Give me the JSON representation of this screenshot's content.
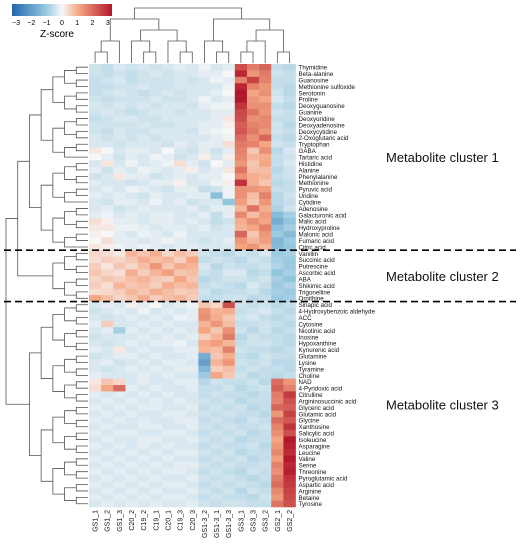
{
  "chart_data": {
    "type": "heatmap",
    "columns": [
      "GS1_1",
      "GS1_2",
      "GS1_3",
      "C20_2",
      "C19_2",
      "C19_1",
      "C20_1",
      "C19_3",
      "C20_3",
      "GS1-3_2",
      "GS1-3_1",
      "GS1-3_3",
      "GS3_1",
      "GS3_3",
      "GS3_2",
      "GS2_1",
      "GS2_2"
    ],
    "rows": [
      "Thymidine",
      "Beta-alanine",
      "Guanosine",
      "Methionine sulfoxide",
      "Serotonin",
      "Proline",
      "Deoxyguanosine",
      "Guanine",
      "Deoxyuridine",
      "Deoxyadenosine",
      "Deoxycytidine",
      "2-Oxoglutaric acid",
      "Tryptophan",
      "GABA",
      "Tartaric acid",
      "Histidine",
      "Alanine",
      "Phenylalanine",
      "Methionine",
      "Pyruvic acid",
      "Uridine",
      "Cytidine",
      "Adenosine",
      "Galacturonic acid",
      "Malic acid",
      "Hydroxyproline",
      "Malonic acid",
      "Fumaric acid",
      "Citric acid",
      "Vanillin",
      "Succinic acid",
      "Putrescine",
      "Ascorbic acid",
      "ABA",
      "Shikimic acid",
      "Trigonelline",
      "Ornithine",
      "Sinapic acid",
      "4-Hydroxybenzoic aldehyde",
      "ACC",
      "Cytosine",
      "Nicotinic acid",
      "Inosine",
      "Hypoxanthine",
      "Kynurenic acid",
      "Glutamine",
      "Lysine",
      "Tyramine",
      "Choline",
      "NAD",
      "4-Pyridoxic acid",
      "Citrulline",
      "Argininosuccinic acid",
      "Glyceric acid",
      "Glutamic acid",
      "Glycine",
      "Xanthosine",
      "Salicylic acid",
      "Isoleucine",
      "Asparagine",
      "Leucine",
      "Valine",
      "Serine",
      "Threonine",
      "Pyroglutamic acid",
      "Aspartic acid",
      "Arginine",
      "Betaine",
      "Tyrosine"
    ],
    "values": [
      [
        -0.4,
        -0.5,
        -0.3,
        -0.4,
        -0.3,
        -0.4,
        -0.3,
        -0.2,
        -0.3,
        -0.1,
        -0.3,
        -0.2,
        2.2,
        1.6,
        1.9,
        -0.5,
        -0.6
      ],
      [
        -0.4,
        -0.5,
        -0.4,
        -0.5,
        -0.4,
        -0.3,
        -0.4,
        -0.3,
        -0.3,
        -0.2,
        -0.2,
        0.0,
        2.8,
        1.2,
        1.6,
        -0.4,
        -0.5
      ],
      [
        -0.5,
        -0.4,
        -0.3,
        -0.5,
        -0.4,
        -0.4,
        -0.4,
        -0.3,
        -0.4,
        -0.3,
        -0.1,
        -0.2,
        1.5,
        2.4,
        1.5,
        -0.5,
        -0.5
      ],
      [
        -0.5,
        -0.5,
        -0.4,
        -0.4,
        -0.3,
        -0.4,
        -0.4,
        -0.3,
        -0.3,
        -0.3,
        -0.3,
        -0.1,
        2.8,
        1.5,
        1.2,
        -0.5,
        -0.6
      ],
      [
        -0.5,
        -0.4,
        -0.3,
        -0.4,
        -0.5,
        -0.4,
        -0.3,
        -0.4,
        -0.3,
        -0.3,
        -0.2,
        0.0,
        3.0,
        1.0,
        1.3,
        -0.4,
        -0.6
      ],
      [
        -0.4,
        -0.5,
        -0.4,
        -0.4,
        -0.4,
        -0.3,
        -0.4,
        -0.4,
        -0.3,
        -0.1,
        -0.3,
        -0.2,
        3.0,
        1.2,
        1.0,
        -0.3,
        -0.5
      ],
      [
        -0.3,
        -0.4,
        -0.3,
        -0.4,
        -0.3,
        -0.4,
        -0.3,
        -0.3,
        -0.4,
        -0.2,
        -0.1,
        -0.1,
        2.6,
        1.3,
        1.3,
        -0.5,
        -0.6
      ],
      [
        -0.4,
        -0.3,
        -0.4,
        -0.5,
        -0.4,
        -0.3,
        -0.3,
        -0.4,
        -0.3,
        -0.3,
        -0.2,
        -0.2,
        2.3,
        1.7,
        1.2,
        -0.4,
        -0.5
      ],
      [
        -0.5,
        -0.4,
        -0.3,
        -0.3,
        -0.4,
        -0.4,
        -0.3,
        -0.3,
        -0.3,
        -0.3,
        -0.2,
        0.2,
        2.2,
        1.3,
        1.4,
        -0.5,
        -0.5
      ],
      [
        -0.4,
        -0.4,
        -0.4,
        -0.4,
        -0.3,
        -0.4,
        -0.4,
        -0.3,
        -0.3,
        -0.2,
        -0.2,
        0.1,
        2.0,
        1.5,
        1.4,
        -0.4,
        -0.6
      ],
      [
        -0.4,
        -0.5,
        -0.3,
        -0.4,
        -0.4,
        -0.3,
        -0.3,
        -0.3,
        -0.4,
        -0.2,
        -0.1,
        0.0,
        2.1,
        1.6,
        1.2,
        -0.4,
        -0.5
      ],
      [
        -0.3,
        -0.4,
        -0.3,
        -0.4,
        -0.3,
        -0.4,
        -0.3,
        -0.3,
        -0.3,
        -0.3,
        -0.2,
        -0.1,
        1.8,
        1.3,
        1.9,
        -0.5,
        -0.6
      ],
      [
        -0.3,
        -0.3,
        -0.4,
        -0.3,
        -0.3,
        -0.3,
        -0.4,
        -0.2,
        -0.3,
        -0.2,
        -0.2,
        0.3,
        1.6,
        1.5,
        1.0,
        -0.4,
        -0.5
      ],
      [
        0.2,
        0.0,
        -0.3,
        -0.2,
        -0.2,
        -0.3,
        0.0,
        -0.3,
        -0.4,
        -0.2,
        -0.4,
        -0.2,
        1.5,
        0.6,
        1.3,
        -0.6,
        -0.3
      ],
      [
        0.0,
        -0.2,
        -0.4,
        -0.2,
        -0.3,
        -0.1,
        -0.2,
        -0.4,
        -0.3,
        0.1,
        -0.3,
        0.1,
        1.4,
        0.8,
        0.9,
        -0.5,
        -0.4
      ],
      [
        -0.3,
        0.2,
        -0.3,
        -0.1,
        -0.3,
        -0.2,
        -0.1,
        0.3,
        -0.2,
        -0.4,
        0.0,
        -0.2,
        1.2,
        0.6,
        1.0,
        -0.5,
        -0.3
      ],
      [
        -0.2,
        -0.4,
        -0.2,
        -0.3,
        -0.1,
        -0.2,
        -0.3,
        -0.2,
        0.1,
        -0.3,
        -0.2,
        0.2,
        1.7,
        0.7,
        0.7,
        -0.6,
        -0.4
      ],
      [
        -0.4,
        -0.3,
        0.2,
        -0.2,
        -0.2,
        -0.4,
        -0.3,
        -0.2,
        -0.3,
        -0.2,
        -0.2,
        0.0,
        1.3,
        0.9,
        0.8,
        -0.5,
        -0.4
      ],
      [
        -0.2,
        -0.3,
        -0.3,
        -0.4,
        -0.3,
        -0.2,
        -0.2,
        0.1,
        -0.3,
        -0.3,
        -0.1,
        0.1,
        2.6,
        0.9,
        0.6,
        -0.6,
        -0.5
      ],
      [
        -0.3,
        -0.2,
        -0.3,
        -0.1,
        -0.2,
        -0.3,
        -0.4,
        -0.2,
        -0.2,
        -0.5,
        -0.4,
        -0.1,
        1.3,
        1.2,
        1.1,
        -0.5,
        -0.5
      ],
      [
        -0.2,
        -0.3,
        -0.2,
        -0.3,
        -0.4,
        -0.2,
        -0.3,
        -0.3,
        -0.2,
        -0.2,
        -1.1,
        -0.1,
        1.3,
        0.7,
        1.5,
        -0.6,
        -0.4
      ],
      [
        -0.3,
        -0.4,
        -0.2,
        -0.2,
        -0.3,
        -0.1,
        -0.3,
        -0.2,
        -0.4,
        -0.3,
        -0.3,
        -1.0,
        1.1,
        0.6,
        1.2,
        -0.6,
        -0.5
      ],
      [
        -0.3,
        -0.2,
        -0.4,
        -0.3,
        -0.2,
        -0.3,
        -0.3,
        -0.3,
        -0.2,
        -0.4,
        -0.2,
        -0.2,
        0.8,
        1.7,
        0.9,
        -0.7,
        -0.4
      ],
      [
        -0.2,
        -0.1,
        -0.3,
        -0.2,
        -0.3,
        -0.2,
        -0.2,
        -0.3,
        -0.3,
        -0.2,
        -0.5,
        -0.2,
        1.4,
        0.7,
        1.1,
        -1.2,
        -0.8
      ],
      [
        0.3,
        0.1,
        -0.2,
        -0.2,
        -0.3,
        -0.2,
        -0.2,
        -0.3,
        -0.2,
        -0.3,
        -0.5,
        -0.4,
        0.9,
        1.3,
        1.0,
        -1.5,
        -1.0
      ],
      [
        0.2,
        0.2,
        -0.1,
        -0.1,
        -0.2,
        -0.3,
        -0.2,
        -0.2,
        -0.3,
        -0.2,
        -0.4,
        -0.3,
        0.8,
        1.0,
        1.5,
        -1.1,
        -0.8
      ],
      [
        0.1,
        0.0,
        -0.2,
        -0.3,
        -0.1,
        -0.2,
        -0.3,
        -0.1,
        -0.3,
        -0.3,
        -0.3,
        -0.3,
        1.9,
        0.6,
        1.2,
        -0.9,
        -1.2
      ],
      [
        0.0,
        0.3,
        -0.2,
        -0.2,
        -0.3,
        -0.2,
        -0.1,
        -0.2,
        -0.3,
        -0.4,
        -0.3,
        -0.2,
        1.2,
        0.8,
        1.1,
        -1.3,
        -0.9
      ],
      [
        0.2,
        0.1,
        -0.1,
        -0.2,
        -0.1,
        -0.2,
        -0.3,
        -0.2,
        -0.2,
        -0.3,
        -0.3,
        -0.3,
        1.0,
        1.2,
        0.8,
        -1.2,
        -1.0
      ],
      [
        0.4,
        0.3,
        0.2,
        0.8,
        0.6,
        0.9,
        0.4,
        0.7,
        0.5,
        -0.4,
        -0.5,
        -0.6,
        -0.4,
        -0.5,
        -0.3,
        -0.9,
        -0.8
      ],
      [
        0.3,
        0.5,
        0.4,
        0.6,
        0.9,
        0.7,
        0.8,
        0.5,
        1.0,
        -0.5,
        -0.4,
        -0.5,
        -0.6,
        -0.4,
        -0.5,
        -0.8,
        -0.9
      ],
      [
        0.5,
        0.2,
        0.6,
        0.4,
        0.7,
        1.2,
        0.6,
        0.9,
        0.8,
        -0.3,
        -0.6,
        -0.4,
        -0.5,
        -0.5,
        -0.4,
        -0.7,
        -0.9
      ],
      [
        0.6,
        0.4,
        0.3,
        0.9,
        0.5,
        0.8,
        1.1,
        0.6,
        0.7,
        -0.4,
        -0.5,
        -0.3,
        -0.3,
        -0.6,
        -0.5,
        -1.0,
        -0.8
      ],
      [
        0.4,
        0.6,
        0.5,
        0.7,
        0.8,
        0.6,
        0.5,
        1.0,
        0.6,
        -0.6,
        -0.5,
        -0.4,
        -0.4,
        -0.5,
        -0.4,
        -0.8,
        -1.0
      ],
      [
        0.5,
        0.3,
        0.8,
        0.6,
        0.7,
        0.5,
        0.9,
        0.7,
        0.8,
        -0.5,
        -0.4,
        -0.5,
        -0.6,
        -0.3,
        -0.5,
        -0.9,
        -0.7
      ],
      [
        0.3,
        0.4,
        0.5,
        0.8,
        0.6,
        0.9,
        0.7,
        0.5,
        0.6,
        -0.4,
        -0.6,
        -0.5,
        -0.5,
        -0.4,
        -0.6,
        -0.8,
        -0.9
      ],
      [
        1.0,
        0.7,
        0.4,
        0.6,
        0.9,
        0.5,
        0.7,
        0.8,
        0.5,
        -0.5,
        -0.5,
        -0.4,
        -0.4,
        -0.6,
        -0.5,
        -0.9,
        -0.8
      ],
      [
        -0.3,
        -0.2,
        -0.3,
        0.1,
        -0.2,
        0.0,
        -0.3,
        -0.2,
        -0.1,
        0.6,
        0.4,
        2.2,
        -0.4,
        -0.5,
        -0.4,
        -0.6,
        -0.5
      ],
      [
        -0.4,
        -0.3,
        -0.2,
        -0.3,
        -0.1,
        -0.3,
        -0.2,
        -0.3,
        -0.2,
        1.2,
        0.8,
        0.9,
        -0.5,
        -0.4,
        -0.3,
        -0.5,
        -0.6
      ],
      [
        -0.3,
        -0.4,
        -0.3,
        -0.2,
        -0.3,
        -0.2,
        -0.3,
        -0.1,
        -0.2,
        1.3,
        0.9,
        0.6,
        -0.4,
        -0.3,
        -0.5,
        -0.6,
        -0.5
      ],
      [
        -0.2,
        0.5,
        -0.3,
        -0.3,
        -0.2,
        -0.3,
        -0.2,
        -0.3,
        -0.3,
        0.8,
        1.2,
        0.7,
        -0.5,
        -0.5,
        -0.4,
        -0.5,
        -0.6
      ],
      [
        -0.3,
        -0.2,
        -0.8,
        -0.2,
        -0.3,
        -0.2,
        -0.3,
        -0.2,
        -0.3,
        1.0,
        0.6,
        1.3,
        -0.4,
        -0.6,
        -0.4,
        -0.6,
        -0.5
      ],
      [
        -0.4,
        -0.3,
        -0.3,
        -0.3,
        -0.2,
        -0.3,
        -0.2,
        -0.3,
        -0.2,
        0.5,
        0.8,
        1.6,
        -0.6,
        -0.4,
        -0.5,
        -0.5,
        -0.6
      ],
      [
        -0.3,
        -0.4,
        -0.3,
        -0.2,
        -0.3,
        -0.2,
        -0.2,
        -0.1,
        -0.3,
        0.9,
        1.1,
        0.8,
        -0.5,
        -0.4,
        -0.4,
        -0.5,
        -0.6
      ],
      [
        -0.2,
        -0.3,
        0.2,
        -0.3,
        -0.2,
        -0.3,
        -0.3,
        -0.2,
        -0.2,
        0.8,
        0.7,
        1.5,
        -0.4,
        -0.5,
        -0.5,
        -0.6,
        -0.5
      ],
      [
        -0.4,
        -0.3,
        -0.2,
        -0.2,
        -0.3,
        -0.2,
        -0.3,
        -0.3,
        -0.2,
        -1.5,
        0.6,
        0.9,
        -0.5,
        -0.6,
        -0.4,
        -0.5,
        -0.5
      ],
      [
        -0.3,
        -0.2,
        -0.4,
        -0.3,
        -0.2,
        -0.3,
        -0.2,
        -0.2,
        -0.3,
        -1.8,
        0.8,
        1.2,
        -0.4,
        -0.5,
        -0.4,
        -0.6,
        -0.6
      ],
      [
        -0.3,
        -0.4,
        -0.3,
        -0.2,
        -0.3,
        -0.2,
        -0.3,
        -0.2,
        -0.2,
        -1.3,
        0.5,
        0.7,
        -0.5,
        -0.4,
        -0.5,
        -0.5,
        -0.6
      ],
      [
        -0.2,
        -0.3,
        -0.3,
        -0.3,
        -0.2,
        -0.3,
        -0.2,
        -0.3,
        -0.3,
        -0.9,
        1.0,
        0.6,
        -0.4,
        -0.6,
        -0.5,
        -0.6,
        -0.5
      ],
      [
        0.2,
        0.6,
        0.4,
        -0.3,
        -0.2,
        -0.3,
        -0.3,
        -0.2,
        -0.2,
        -0.6,
        -0.4,
        -0.5,
        -0.5,
        -0.4,
        -0.6,
        1.8,
        1.2
      ],
      [
        0.3,
        1.0,
        1.8,
        -0.2,
        -0.3,
        -0.2,
        -0.3,
        -0.3,
        -0.2,
        -0.5,
        -0.5,
        -0.4,
        -0.6,
        -0.5,
        -0.4,
        2.0,
        1.5
      ],
      [
        -0.2,
        -0.3,
        -0.2,
        -0.3,
        -0.2,
        -0.3,
        -0.2,
        -0.3,
        -0.3,
        -0.5,
        -0.4,
        -0.5,
        -0.5,
        -0.6,
        -0.5,
        1.6,
        2.5
      ],
      [
        -0.3,
        -0.2,
        -0.3,
        -0.2,
        -0.3,
        -0.2,
        -0.3,
        -0.2,
        -0.3,
        -0.4,
        -0.5,
        -0.4,
        -0.6,
        -0.5,
        -0.5,
        1.5,
        2.2
      ],
      [
        -0.2,
        -0.3,
        -0.2,
        -0.3,
        -0.2,
        -0.2,
        -0.3,
        -0.3,
        -0.2,
        -0.5,
        -0.4,
        -0.5,
        -0.4,
        -0.6,
        -0.5,
        1.9,
        2.0
      ],
      [
        -0.3,
        -0.2,
        -0.3,
        -0.2,
        -0.3,
        -0.3,
        -0.2,
        -0.2,
        -0.3,
        -0.4,
        -0.5,
        -0.4,
        -0.5,
        -0.5,
        -0.6,
        1.2,
        2.4
      ],
      [
        -0.2,
        -0.3,
        -0.2,
        -0.3,
        -0.2,
        -0.3,
        -0.3,
        -0.2,
        -0.2,
        -0.5,
        -0.4,
        -0.5,
        -0.6,
        -0.4,
        -0.5,
        1.8,
        2.1
      ],
      [
        -0.3,
        -0.2,
        -0.3,
        -0.3,
        -0.2,
        -0.2,
        -0.3,
        -0.3,
        -0.2,
        -0.4,
        -0.5,
        -0.4,
        -0.5,
        -0.5,
        -0.4,
        1.5,
        2.6
      ],
      [
        -0.2,
        -0.3,
        -0.2,
        -0.2,
        -0.3,
        -0.3,
        -0.2,
        -0.2,
        -0.3,
        -0.5,
        -0.4,
        -0.5,
        -0.4,
        -0.6,
        -0.5,
        1.3,
        2.2
      ],
      [
        -0.3,
        -0.2,
        -0.3,
        -0.3,
        -0.2,
        -0.2,
        -0.3,
        -0.3,
        -0.2,
        -0.4,
        -0.5,
        -0.4,
        -0.6,
        -0.5,
        -0.5,
        1.0,
        3.0
      ],
      [
        -0.2,
        -0.3,
        -0.2,
        -0.3,
        -0.2,
        -0.3,
        -0.2,
        -0.3,
        -0.3,
        -0.5,
        -0.4,
        -0.5,
        -0.5,
        -0.4,
        -0.6,
        1.2,
        2.9
      ],
      [
        -0.3,
        -0.2,
        -0.3,
        -0.2,
        -0.3,
        -0.2,
        -0.3,
        -0.2,
        -0.2,
        -0.4,
        -0.5,
        -0.4,
        -0.6,
        -0.5,
        -0.5,
        1.4,
        2.7
      ],
      [
        -0.2,
        -0.3,
        -0.2,
        -0.3,
        -0.2,
        -0.3,
        -0.2,
        -0.3,
        -0.3,
        -0.5,
        -0.4,
        -0.5,
        -0.4,
        -0.6,
        -0.5,
        1.1,
        3.0
      ],
      [
        -0.3,
        -0.2,
        -0.3,
        -0.2,
        -0.3,
        -0.2,
        -0.3,
        -0.2,
        -0.2,
        -0.4,
        -0.5,
        -0.4,
        -0.5,
        -0.5,
        -0.4,
        1.5,
        2.8
      ],
      [
        -0.2,
        -0.3,
        -0.2,
        -0.3,
        -0.2,
        -0.3,
        -0.2,
        -0.2,
        -0.3,
        -0.5,
        -0.4,
        -0.5,
        -0.6,
        -0.4,
        -0.5,
        1.3,
        2.9
      ],
      [
        -0.3,
        -0.2,
        -0.3,
        -0.2,
        -0.3,
        -0.2,
        -0.3,
        -0.3,
        -0.2,
        -0.4,
        -0.5,
        -0.4,
        -0.5,
        -0.6,
        -0.5,
        1.6,
        2.6
      ],
      [
        -0.2,
        -0.3,
        -0.2,
        -0.3,
        -0.2,
        -0.3,
        -0.2,
        -0.2,
        -0.3,
        -0.5,
        -0.4,
        -0.5,
        -0.4,
        -0.5,
        -0.6,
        1.8,
        2.5
      ],
      [
        -0.3,
        -0.2,
        -0.3,
        -0.2,
        -0.3,
        -0.2,
        -0.3,
        -0.3,
        -0.2,
        -0.4,
        -0.5,
        -0.4,
        -0.6,
        -0.4,
        -0.5,
        1.4,
        2.4
      ],
      [
        -0.2,
        -0.3,
        -0.2,
        -0.3,
        -0.2,
        -0.3,
        -0.2,
        -0.2,
        -0.3,
        -0.5,
        -0.4,
        -0.5,
        -0.5,
        -0.6,
        -0.4,
        1.2,
        2.3
      ],
      [
        -0.3,
        -0.2,
        -0.3,
        -0.2,
        -0.3,
        -0.2,
        -0.3,
        -0.3,
        -0.2,
        -0.4,
        -0.5,
        -0.4,
        -0.4,
        -0.5,
        -0.5,
        1.7,
        2.2
      ]
    ],
    "color_scale": {
      "min": -3,
      "max": 3,
      "low": "#2166ac",
      "mid": "#f7f7f7",
      "high": "#b2182b"
    },
    "legend": {
      "title": "Z-score",
      "ticks": [
        "−3",
        "−2",
        "−1",
        "0",
        "1",
        "2",
        "3"
      ]
    },
    "clusters": [
      {
        "label": "Metabolite cluster 1",
        "first_row": 0,
        "last_row": 28
      },
      {
        "label": "Metabolite cluster 2",
        "first_row": 29,
        "last_row": 36
      },
      {
        "label": "Metabolite cluster 3",
        "first_row": 37,
        "last_row": 68
      }
    ],
    "column_dendrogram": true,
    "row_dendrogram": true
  }
}
